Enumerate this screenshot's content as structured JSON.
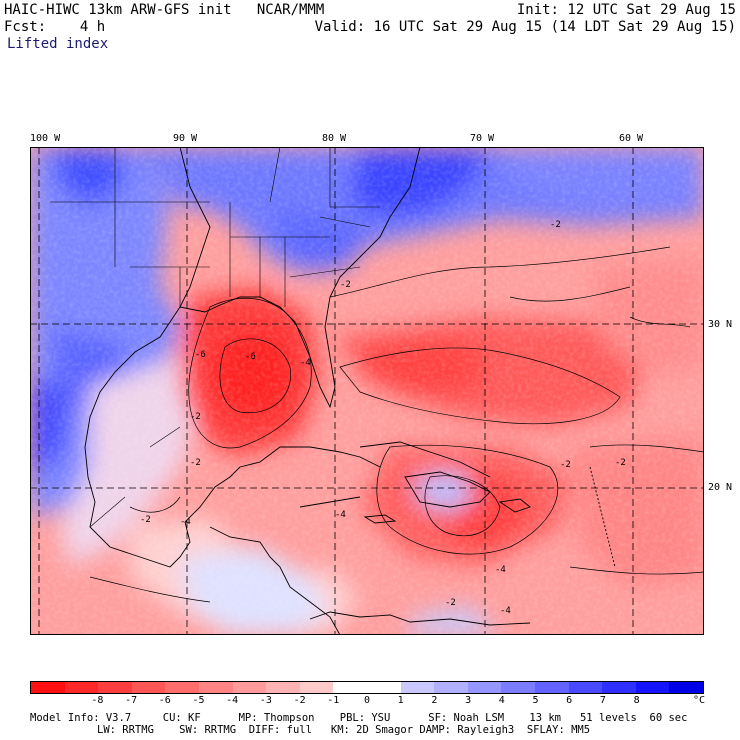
{
  "header": {
    "line1_left": "HAIC-HIWC 13km ARW-GFS init   NCAR/MMM",
    "line1_right": "Init: 12 UTC Sat 29 Aug 15",
    "line2_left": "Fcst:    4 h",
    "line2_right": "Valid: 16 UTC Sat 29 Aug 15 (14 LDT Sat 29 Aug 15)",
    "field": "Lifted index"
  },
  "map": {
    "lon_labels": [
      "100 W",
      "90 W",
      "80 W",
      "70 W",
      "60 W"
    ],
    "lat_labels": [
      "30 N",
      "20 N"
    ],
    "contour_labels": [
      "-2",
      "-2",
      "-4",
      "-2",
      "-2",
      "-6",
      "-6",
      "-2",
      "-4",
      "-2",
      "-4",
      "-2",
      "-4",
      "-2",
      "-4"
    ]
  },
  "colorbar": {
    "colors": [
      "#ff1010",
      "#ff2828",
      "#ff3f3f",
      "#ff5656",
      "#ff6d6d",
      "#ff8484",
      "#ff9b9b",
      "#ffb3b3",
      "#ffcaca",
      "#ffffff",
      "#ffffff",
      "#c9c9ff",
      "#b0b0ff",
      "#9696ff",
      "#7c7cff",
      "#6363ff",
      "#4949ff",
      "#2f2fff",
      "#1414ff",
      "#0000e8"
    ],
    "ticks": [
      "-8",
      "-7",
      "-6",
      "-5",
      "-4",
      "-3",
      "-2",
      "-1",
      "0",
      "1",
      "2",
      "3",
      "4",
      "5",
      "6",
      "7",
      "8"
    ],
    "unit": "°C"
  },
  "model_info": {
    "line1": "Model Info: V3.7     CU: KF      MP: Thompson    PBL: YSU      SF: Noah LSM    13 km   51 levels  60 sec",
    "line2": "LW: RRTMG    SW: RRTMG  DIFF: full   KM: 2D Smagor DAMP: Rayleigh3  SFLAY: MM5"
  }
}
